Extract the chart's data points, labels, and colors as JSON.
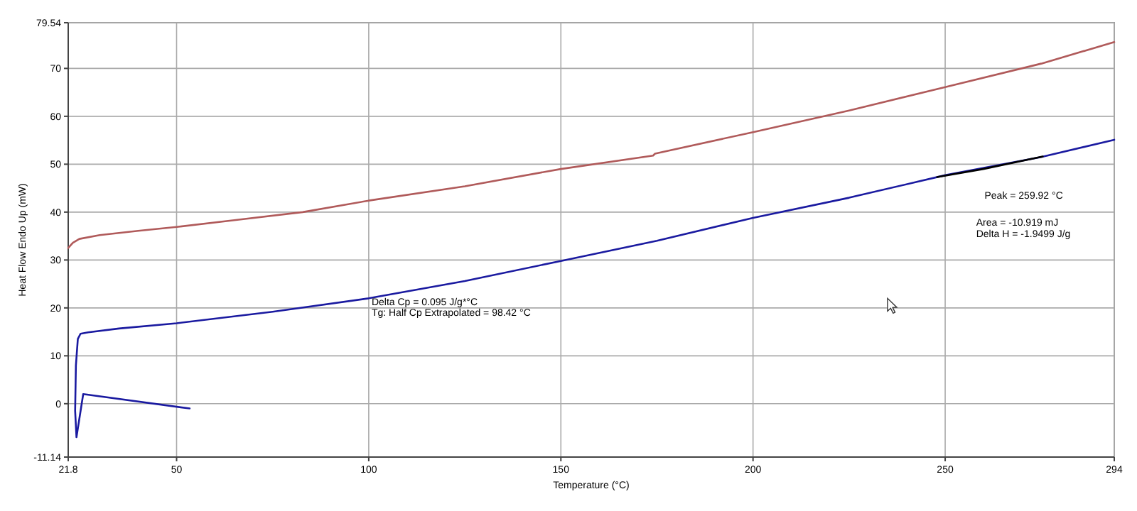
{
  "chart_data": {
    "type": "line",
    "xlabel": "Temperature (°C)",
    "ylabel": "Heat Flow Endo Up (mW)",
    "xlim": [
      21.8,
      294
    ],
    "xticks": [
      21.8,
      50,
      100,
      150,
      200,
      250,
      294
    ],
    "ylim": [
      -11.14,
      79.54
    ],
    "yticks": [
      -11.14,
      0,
      10,
      20,
      30,
      40,
      50,
      60,
      70,
      79.54
    ],
    "grid": true,
    "line_style": "solid",
    "marker": "none",
    "series": [
      {
        "color": "#b05a5a",
        "x": [
          21.8,
          23,
          24.7,
          30,
          40,
          50,
          65,
          82.8,
          100,
          125,
          150,
          174,
          174.5,
          200,
          225,
          250,
          275,
          294
        ],
        "values": [
          32.5,
          33.6,
          34.4,
          35.2,
          36.1,
          36.9,
          38.3,
          40.0,
          42.4,
          45.4,
          49.0,
          51.8,
          52.2,
          56.7,
          61.2,
          66.1,
          71.0,
          75.5
        ]
      },
      {
        "color": "#1a1aa0",
        "x": [
          53.4,
          25.7,
          23.95,
          23.6,
          23.8,
          24.3,
          25,
          27,
          35,
          50,
          75,
          100,
          125,
          150,
          175,
          200,
          225,
          250,
          275,
          294
        ],
        "values": [
          -1.0,
          2.0,
          -7.0,
          -1.5,
          8.0,
          13.5,
          14.6,
          14.9,
          15.7,
          16.8,
          19.2,
          22.0,
          25.6,
          29.8,
          34.0,
          38.8,
          43.0,
          47.7,
          51.5,
          55.1
        ]
      },
      {
        "color": "#000000",
        "x": [
          247.9,
          259.92,
          275.4
        ],
        "values": [
          47.3,
          49.0,
          51.6
        ]
      }
    ],
    "annotations": [
      "Delta Cp = 0.095 J/g*°C",
      "Tg: Half Cp Extrapolated = 98.42 °C",
      "Peak = 259.92 °C",
      "Area = -10.919 mJ",
      "Delta H = -1.9499 J/g"
    ]
  }
}
